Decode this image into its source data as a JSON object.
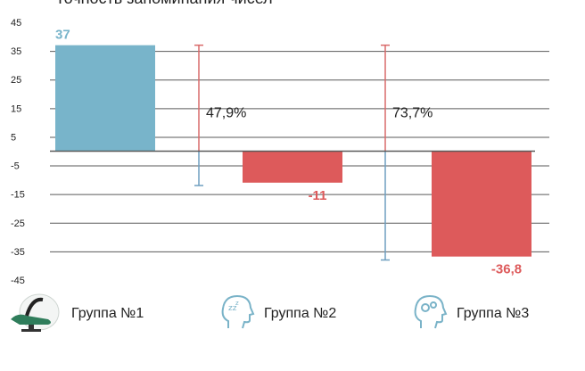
{
  "title": "Точность запоминания чисел",
  "colors": {
    "group1": "#78b4ca",
    "group_neg": "#dd5a5b",
    "whisker_red": "#d96a6a",
    "whisker_blue": "#6f9fc0",
    "grid": "#5a5a5a"
  },
  "chart_data": {
    "type": "bar",
    "title": "Точность запоминания чисел",
    "categories": [
      "Группа №1",
      "Группа №2",
      "Группа №3"
    ],
    "values": [
      37,
      -11,
      -36.8
    ],
    "value_labels": [
      "37",
      "-11",
      "-36,8"
    ],
    "ylim": [
      -45,
      45
    ],
    "yticks": [
      45,
      35,
      25,
      15,
      5,
      -5,
      -15,
      -25,
      -35,
      -45
    ],
    "ranges": [
      {
        "between": "Группа №1 / Группа №2",
        "high": 37,
        "low": -12,
        "label": "47,9%"
      },
      {
        "between": "Группа №2 / Группа №3",
        "high": 37,
        "low": -38,
        "label": "73,7%"
      }
    ],
    "grid": true
  },
  "legend": [
    {
      "label": "Группа №1",
      "icon": "chair-logo-icon"
    },
    {
      "label": "Группа №2",
      "icon": "head-sleep-icon"
    },
    {
      "label": "Группа №3",
      "icon": "head-gears-icon"
    }
  ]
}
